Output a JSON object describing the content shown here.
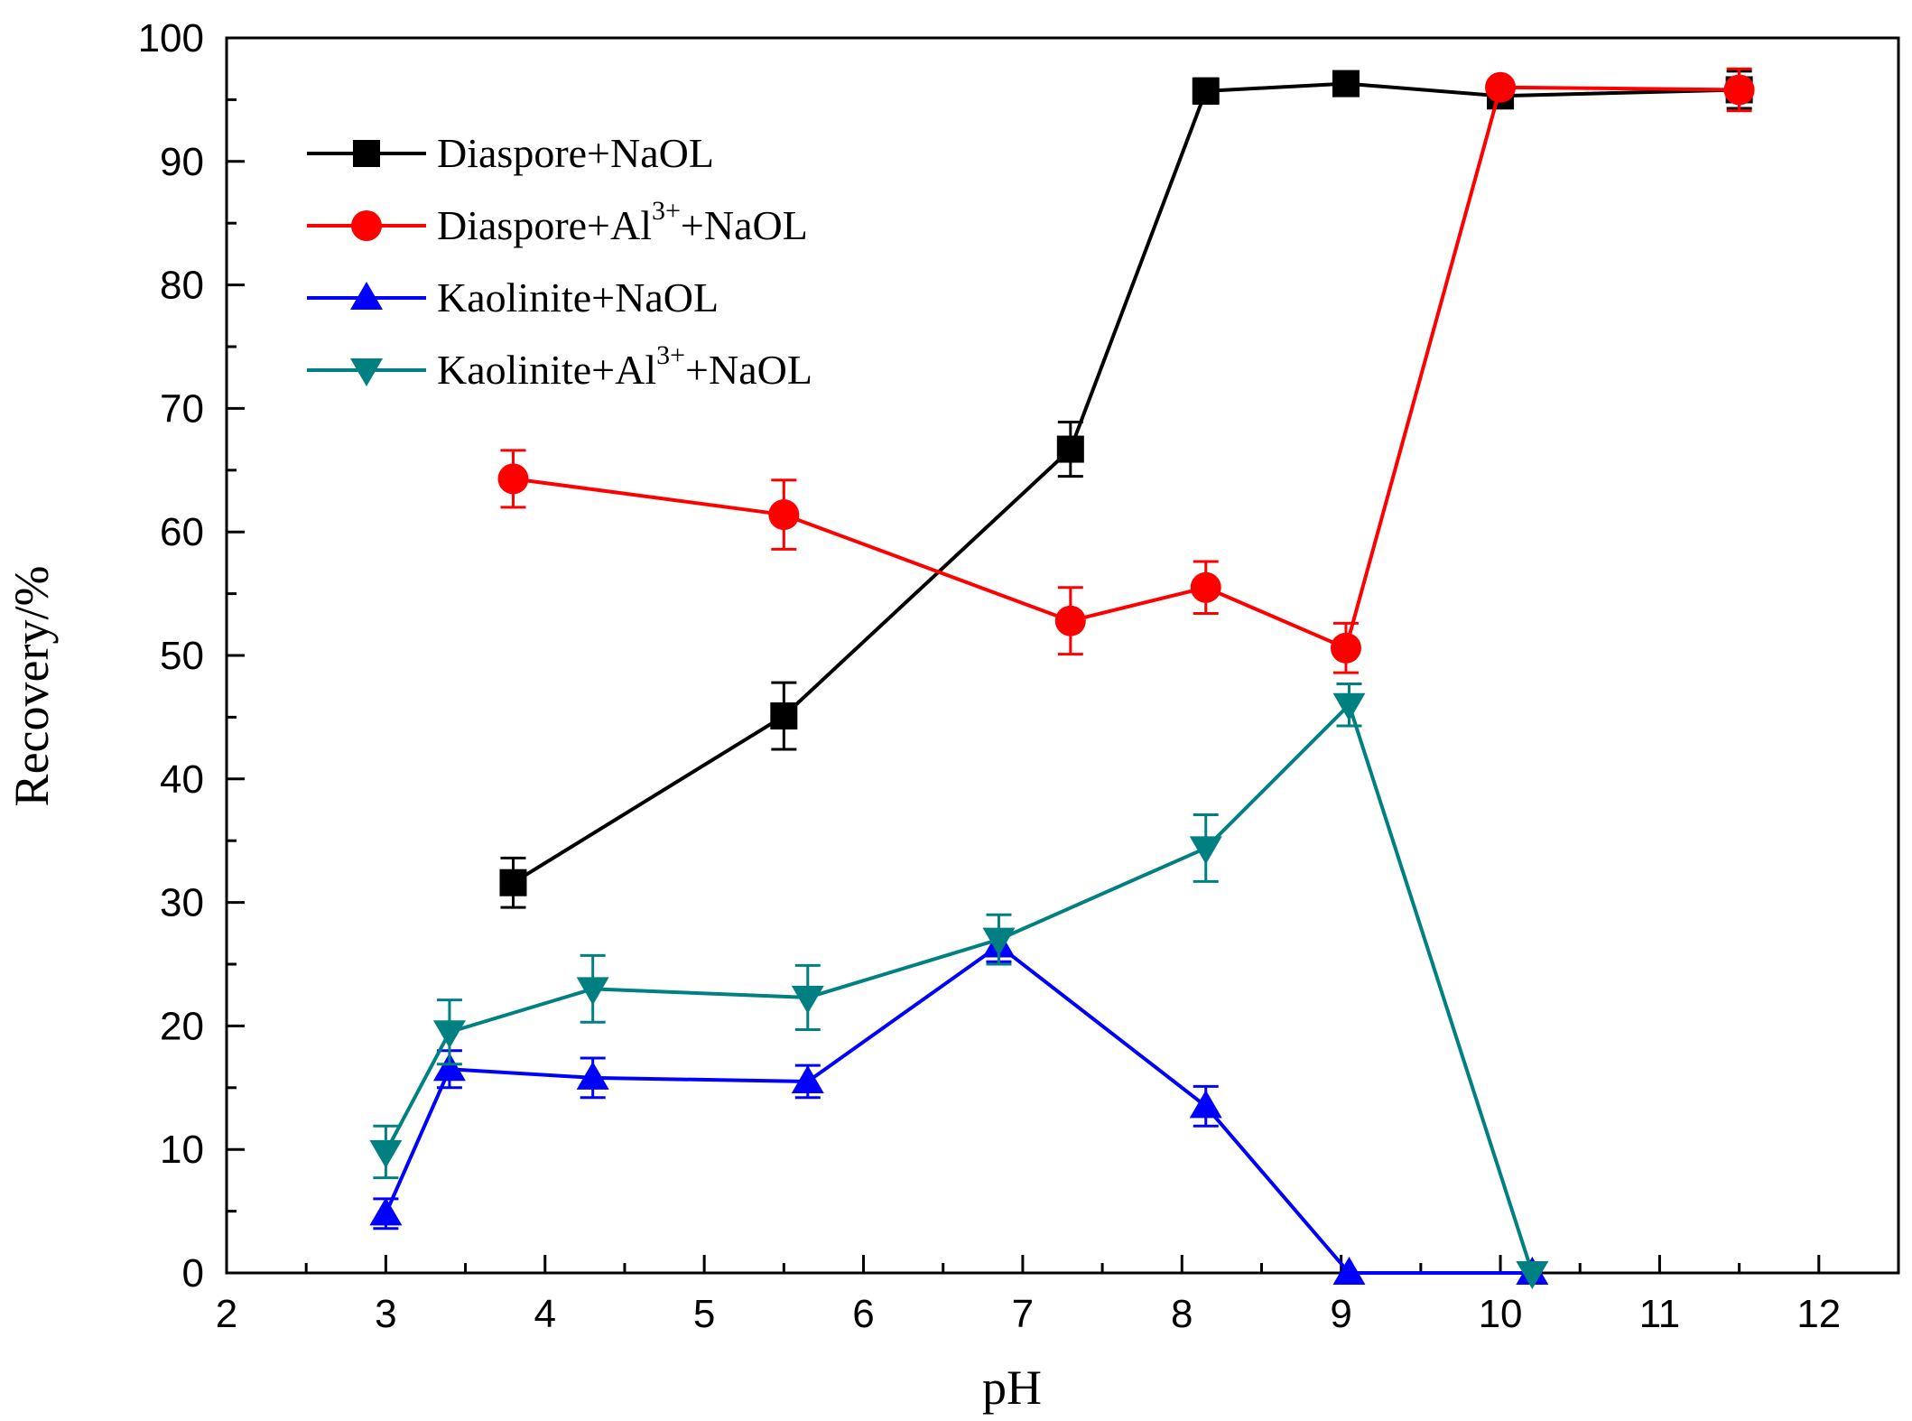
{
  "chart_data": {
    "type": "line",
    "title": "",
    "xlabel": "pH",
    "ylabel": "Recovery/%",
    "xlim": [
      2,
      12.5
    ],
    "ylim": [
      0,
      100
    ],
    "xticks": [
      "2",
      "3",
      "4",
      "5",
      "6",
      "7",
      "8",
      "9",
      "10",
      "11",
      "12"
    ],
    "yticks": [
      "0",
      "10",
      "20",
      "30",
      "40",
      "50",
      "60",
      "70",
      "80",
      "90",
      "100"
    ],
    "grid": false,
    "legend_position": "top-left",
    "series": [
      {
        "name": "Diaspore+NaOL",
        "legend_base": "Diaspore+NaOL",
        "legend_sup": "",
        "legend_tail": "",
        "color": "#000000",
        "marker": "square",
        "x": [
          3.8,
          5.5,
          7.3,
          8.15,
          9.03,
          10.0,
          11.5
        ],
        "y": [
          31.6,
          45.1,
          66.7,
          95.7,
          96.3,
          95.3,
          95.8
        ],
        "err": [
          2.0,
          2.7,
          2.2,
          1.0,
          0.6,
          0.6,
          1.5
        ]
      },
      {
        "name": "Diaspore+Al3++NaOL",
        "legend_base": "Diaspore+Al",
        "legend_sup": "3+",
        "legend_tail": "+NaOL",
        "color": "#ff0000",
        "marker": "circle",
        "x": [
          3.8,
          5.5,
          7.3,
          8.15,
          9.03,
          10.0,
          11.5
        ],
        "y": [
          64.3,
          61.4,
          52.8,
          55.5,
          50.6,
          96.0,
          95.8
        ],
        "err": [
          2.3,
          2.8,
          2.7,
          2.1,
          2.0,
          0.4,
          1.7
        ]
      },
      {
        "name": "Kaolinite+NaOL",
        "legend_base": "Kaolinite+NaOL",
        "legend_sup": "",
        "legend_tail": "",
        "color": "#0000ff",
        "marker": "triangle-up",
        "x": [
          3.0,
          3.4,
          4.3,
          5.65,
          6.85,
          8.15,
          9.05,
          10.2
        ],
        "y": [
          4.8,
          16.5,
          15.8,
          15.5,
          26.5,
          13.5,
          0.0,
          0.0
        ],
        "err": [
          1.2,
          1.5,
          1.6,
          1.3,
          1.3,
          1.6,
          0.0,
          0.0
        ]
      },
      {
        "name": "Kaolinite+Al3++NaOL",
        "legend_base": "Kaolinite+Al",
        "legend_sup": "3+",
        "legend_tail": "+NaOL",
        "color": "#008080",
        "marker": "triangle-down",
        "x": [
          3.0,
          3.4,
          4.3,
          5.65,
          6.85,
          8.15,
          9.05,
          10.2
        ],
        "y": [
          9.8,
          19.5,
          23.0,
          22.3,
          27.0,
          34.4,
          46.0,
          0.0
        ],
        "err": [
          2.1,
          2.6,
          2.7,
          2.6,
          2.0,
          2.7,
          1.7,
          0.0
        ]
      }
    ]
  }
}
